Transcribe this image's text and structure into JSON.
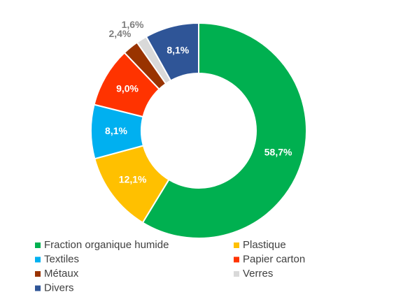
{
  "chart_data": {
    "type": "donut",
    "categories": [
      "Fraction organique humide",
      "Plastique",
      "Textiles",
      "Papier carton",
      "Métaux",
      "Verres",
      "Divers"
    ],
    "values": [
      58.7,
      12.1,
      8.1,
      9.0,
      2.4,
      1.6,
      8.1
    ],
    "value_labels": [
      "58,7%",
      "12,1%",
      "8,1%",
      "9,0%",
      "2,4%",
      "1,6%",
      "8,1%"
    ],
    "colors": [
      "#00b050",
      "#ffc000",
      "#00b0f0",
      "#ff3300",
      "#993300",
      "#d9d9d9",
      "#2f5597"
    ]
  }
}
